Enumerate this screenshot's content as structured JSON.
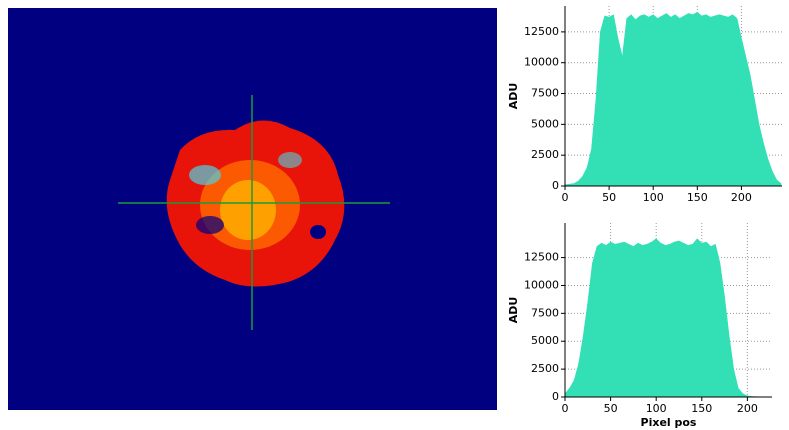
{
  "chart_data": [
    {
      "type": "area",
      "color": "#33e0b6",
      "grid": true,
      "y_label": "ADU",
      "xlim": [
        0,
        246
      ],
      "ylim": [
        0,
        14600
      ],
      "xticks": [
        0,
        50,
        100,
        150,
        200
      ],
      "yticks": [
        0,
        2500,
        5000,
        7500,
        10000,
        12500
      ],
      "x": [
        0,
        5,
        10,
        15,
        20,
        25,
        30,
        35,
        40,
        45,
        50,
        55,
        60,
        65,
        70,
        75,
        80,
        85,
        90,
        95,
        100,
        105,
        110,
        115,
        120,
        125,
        130,
        135,
        140,
        145,
        150,
        155,
        160,
        165,
        170,
        175,
        180,
        185,
        190,
        195,
        200,
        205,
        210,
        215,
        220,
        225,
        230,
        235,
        240,
        245
      ],
      "values": [
        100,
        150,
        200,
        400,
        800,
        1500,
        3000,
        7000,
        12500,
        13800,
        13700,
        13900,
        12000,
        10500,
        13600,
        13900,
        13500,
        13800,
        13900,
        13700,
        13900,
        13600,
        13800,
        14000,
        13700,
        13900,
        13600,
        13800,
        14000,
        13900,
        14100,
        13800,
        13900,
        13700,
        13800,
        13900,
        13800,
        13700,
        13900,
        13600,
        12000,
        10500,
        9000,
        7000,
        5000,
        3500,
        2200,
        1200,
        500,
        200
      ]
    },
    {
      "type": "area",
      "color": "#33e0b6",
      "grid": true,
      "y_label": "ADU",
      "x_label": "Pixel pos",
      "xlim": [
        0,
        227
      ],
      "ylim": [
        0,
        15600
      ],
      "xticks": [
        0,
        50,
        100,
        150,
        200
      ],
      "yticks": [
        0,
        2500,
        5000,
        7500,
        10000,
        12500
      ],
      "x": [
        0,
        5,
        10,
        15,
        20,
        25,
        30,
        35,
        40,
        45,
        50,
        55,
        60,
        65,
        70,
        75,
        80,
        85,
        90,
        95,
        100,
        105,
        110,
        115,
        120,
        125,
        130,
        135,
        140,
        145,
        150,
        155,
        160,
        165,
        170,
        175,
        180,
        185,
        190,
        195,
        200,
        205,
        210,
        215
      ],
      "values": [
        300,
        800,
        1500,
        3000,
        5500,
        8500,
        12000,
        13500,
        13800,
        13600,
        13900,
        13700,
        13800,
        13900,
        13700,
        13500,
        13800,
        13600,
        13700,
        13900,
        14200,
        13800,
        13600,
        13700,
        13900,
        14000,
        13800,
        13600,
        13700,
        14200,
        13800,
        13900,
        13500,
        13700,
        12000,
        9000,
        5500,
        2500,
        800,
        300,
        100,
        50,
        30,
        20
      ]
    }
  ]
}
